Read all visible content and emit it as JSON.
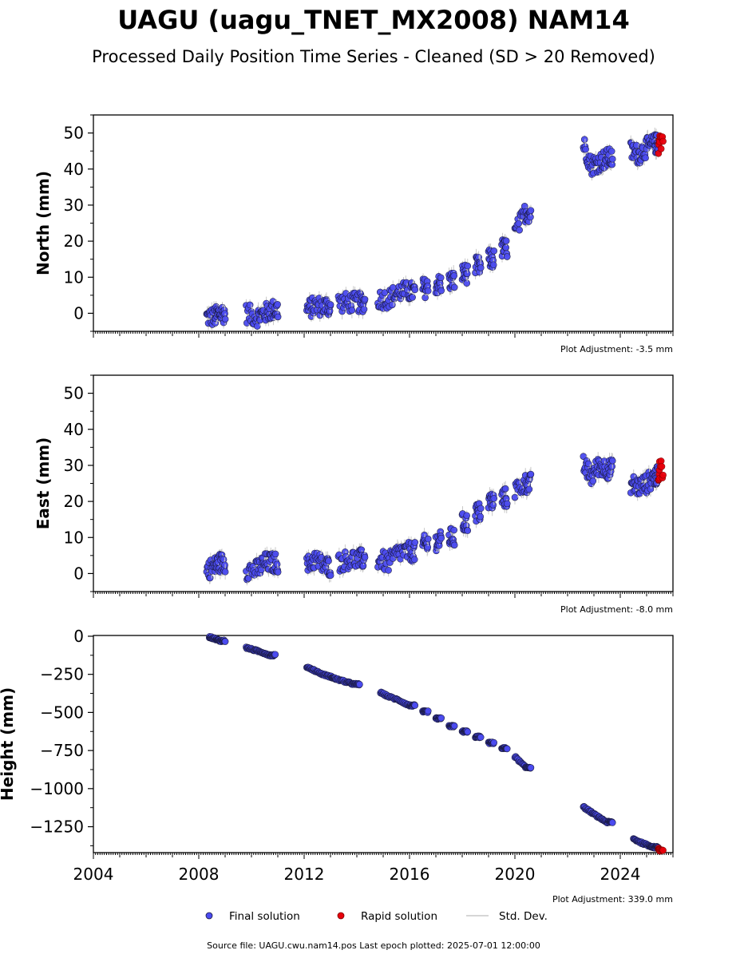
{
  "figure": {
    "title": "UAGU (uagu_TNET_MX2008) NAM14",
    "subtitle": "Processed Daily Position Time Series - Cleaned (SD > 20 Removed)",
    "footer": "Source file: UAGU.cwu.nam14.pos  Last epoch plotted: 2025-07-01 12:00:00",
    "colors": {
      "final": "#4b4bf0",
      "final_edge": "#1a1a40",
      "rapid": "#e8000b",
      "rapid_edge": "#7a0000",
      "stddev": "#c8c8c8"
    }
  },
  "legend": {
    "final_label": "Final solution",
    "rapid_label": "Rapid solution",
    "std_label": "Std. Dev."
  },
  "chart_data": [
    {
      "type": "scatter",
      "ylabel": "North (mm)",
      "adjustment": "Plot Adjustment: -3.5 mm",
      "xlim": [
        2004,
        2026
      ],
      "ylim": [
        -5,
        55
      ],
      "yticks": [
        0,
        10,
        20,
        30,
        40,
        50
      ],
      "series": [
        {
          "name": "Final solution",
          "x": [
            2008.3,
            2008.6,
            2008.8,
            2009.8,
            2010.2,
            2010.5,
            2010.8,
            2012.1,
            2012.4,
            2012.8,
            2013.3,
            2013.7,
            2014.1,
            2014.8,
            2015.2,
            2015.6,
            2016.0,
            2016.5,
            2017.0,
            2017.5,
            2018.0,
            2018.5,
            2019.0,
            2019.5,
            2020.0,
            2020.4,
            2022.6,
            2022.9,
            2023.2,
            2023.5,
            2024.4,
            2024.7,
            2025.0,
            2025.3
          ],
          "y": [
            -1,
            -1,
            0,
            0,
            -1,
            0,
            1,
            1,
            2,
            2,
            3,
            3,
            3,
            4,
            4,
            6,
            6,
            7,
            8,
            9,
            11,
            13,
            15,
            18,
            22,
            28,
            47,
            41,
            42,
            43,
            45,
            44,
            46,
            47
          ]
        },
        {
          "name": "Rapid solution",
          "x": [
            2025.45,
            2025.5
          ],
          "y": [
            46,
            48
          ]
        }
      ]
    },
    {
      "type": "scatter",
      "ylabel": "East (mm)",
      "adjustment": "Plot Adjustment: -8.0 mm",
      "xlim": [
        2004,
        2026
      ],
      "ylim": [
        -5,
        55
      ],
      "yticks": [
        0,
        10,
        20,
        30,
        40,
        50
      ],
      "series": [
        {
          "name": "Final solution",
          "x": [
            2008.3,
            2008.6,
            2008.8,
            2009.8,
            2010.2,
            2010.5,
            2010.8,
            2012.1,
            2012.4,
            2012.8,
            2013.3,
            2013.7,
            2014.1,
            2014.8,
            2015.2,
            2015.6,
            2016.0,
            2016.5,
            2017.0,
            2017.5,
            2018.0,
            2018.5,
            2019.0,
            2019.5,
            2020.0,
            2020.4,
            2022.6,
            2022.9,
            2023.2,
            2023.5,
            2024.4,
            2024.7,
            2025.0,
            2025.3
          ],
          "y": [
            1,
            2,
            3,
            1,
            1,
            3,
            3,
            2,
            4,
            2,
            3,
            4,
            4,
            4,
            3,
            6,
            6,
            8,
            9,
            10,
            14,
            17,
            20,
            21,
            23,
            25,
            30,
            27,
            30,
            29,
            25,
            24,
            25,
            27
          ]
        },
        {
          "name": "Rapid solution",
          "x": [
            2025.45,
            2025.5
          ],
          "y": [
            27,
            29
          ]
        }
      ]
    },
    {
      "type": "scatter",
      "ylabel": "Height (mm)",
      "adjustment": "Plot Adjustment: 339.0 mm",
      "xlim": [
        2004,
        2026
      ],
      "ylim": [
        -1420,
        5
      ],
      "yticks": [
        0,
        -250,
        -500,
        -750,
        -1000,
        -1250
      ],
      "xticks": [
        2004,
        2008,
        2012,
        2016,
        2020,
        2024
      ],
      "series": [
        {
          "name": "Final solution",
          "x": [
            2008.4,
            2008.6,
            2008.8,
            2009.8,
            2010.1,
            2010.4,
            2010.7,
            2012.1,
            2012.4,
            2012.7,
            2013.0,
            2013.2,
            2013.6,
            2013.9,
            2014.9,
            2015.2,
            2015.6,
            2016.0,
            2016.5,
            2017.0,
            2017.5,
            2018.0,
            2018.5,
            2019.0,
            2019.5,
            2020.0,
            2020.4,
            2022.6,
            2022.9,
            2023.2,
            2023.5,
            2024.5,
            2024.8,
            2025.1,
            2025.3
          ],
          "y": [
            -5,
            -15,
            -30,
            -75,
            -90,
            -105,
            -125,
            -200,
            -225,
            -250,
            -265,
            -280,
            -300,
            -315,
            -370,
            -395,
            -420,
            -455,
            -495,
            -540,
            -590,
            -625,
            -660,
            -700,
            -735,
            -790,
            -860,
            -1120,
            -1155,
            -1190,
            -1220,
            -1330,
            -1355,
            -1375,
            -1385
          ]
        },
        {
          "name": "Rapid solution",
          "x": [
            2025.45,
            2025.5
          ],
          "y": [
            -1395,
            -1405
          ]
        }
      ]
    }
  ]
}
